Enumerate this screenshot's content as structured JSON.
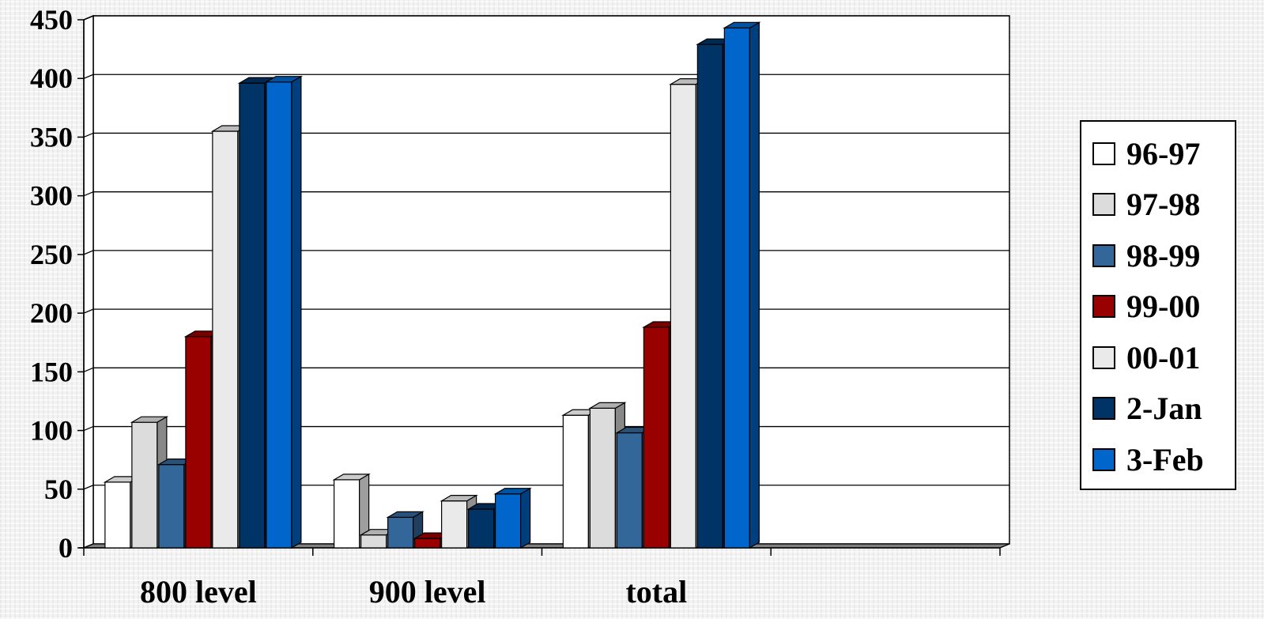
{
  "chart_data": {
    "type": "bar",
    "categories": [
      "800 level",
      "900 level",
      "total",
      ""
    ],
    "series": [
      {
        "name": "96-97",
        "values": [
          56,
          58,
          113,
          null
        ],
        "color": "#ffffff"
      },
      {
        "name": "97-98",
        "values": [
          107,
          11,
          119,
          null
        ],
        "color": "#dcdcdc"
      },
      {
        "name": "98-99",
        "values": [
          71,
          26,
          98,
          null
        ],
        "color": "#336699"
      },
      {
        "name": "99-00",
        "values": [
          180,
          8,
          188,
          null
        ],
        "color": "#990000"
      },
      {
        "name": "00-01",
        "values": [
          355,
          40,
          395,
          null
        ],
        "color": "#eaeaea"
      },
      {
        "name": "2-Jan",
        "values": [
          396,
          33,
          429,
          null
        ],
        "color": "#003366"
      },
      {
        "name": "3-Feb",
        "values": [
          397,
          46,
          443,
          null
        ],
        "color": "#0066cc"
      }
    ],
    "yticks": [
      0,
      50,
      100,
      150,
      200,
      250,
      300,
      350,
      400,
      450
    ],
    "ylim": [
      0,
      450
    ],
    "grid": true,
    "legend_position": "right",
    "style": "3d-clustered-column"
  }
}
